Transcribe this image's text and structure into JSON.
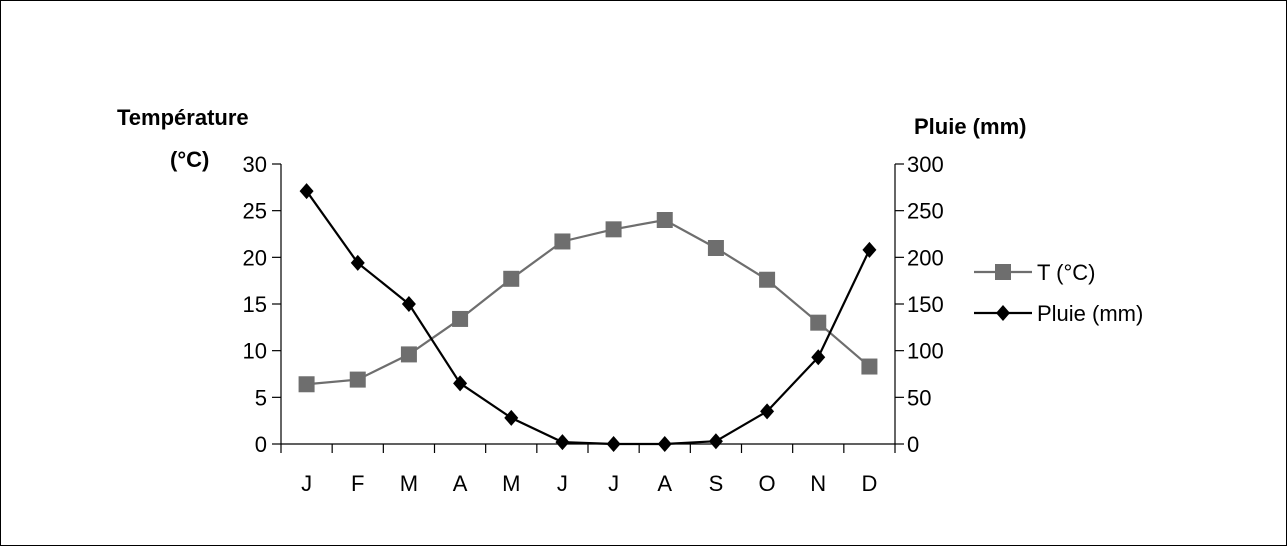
{
  "chart_data": {
    "type": "line",
    "categories": [
      "J",
      "F",
      "M",
      "A",
      "M",
      "J",
      "J",
      "A",
      "S",
      "O",
      "N",
      "D"
    ],
    "y_left": {
      "label_line1": "Température",
      "label_line2": "(°C)",
      "ticks": [
        "0",
        "5",
        "10",
        "15",
        "20",
        "25",
        "30"
      ],
      "ylim": [
        0,
        30
      ]
    },
    "y_right": {
      "label": "Pluie (mm)",
      "ticks": [
        "0",
        "50",
        "100",
        "150",
        "200",
        "250",
        "300"
      ],
      "ylim": [
        0,
        300
      ]
    },
    "series": [
      {
        "name": "T (°C)",
        "axis": "left",
        "marker": "square",
        "color": "#6e6e6e",
        "values": [
          6.4,
          6.9,
          9.6,
          13.4,
          17.7,
          21.7,
          23.0,
          24.0,
          21.0,
          17.6,
          13.0,
          8.3
        ]
      },
      {
        "name": "Pluie (mm)",
        "axis": "right",
        "marker": "diamond",
        "color": "#000000",
        "values": [
          271,
          194,
          150,
          65,
          28,
          2,
          0,
          0,
          3,
          35,
          93,
          208
        ]
      }
    ],
    "legend_position": "right",
    "grid": false
  }
}
